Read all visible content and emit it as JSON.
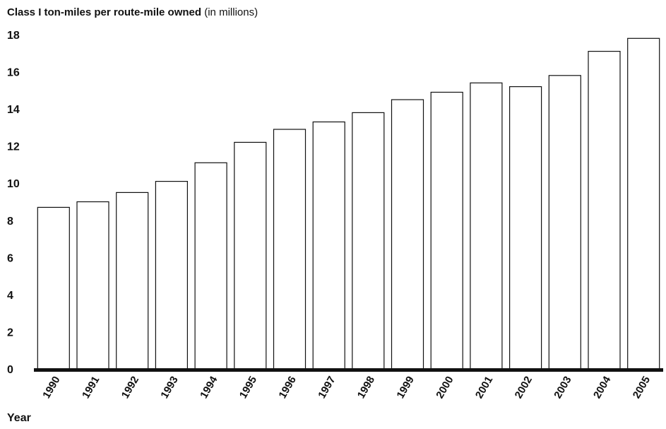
{
  "chart_data": {
    "type": "bar",
    "title": "Class I ton-miles per route-mile owned",
    "title_unit": "(in millions)",
    "xlabel": "Year",
    "ylabel": "",
    "categories": [
      "1990",
      "1991",
      "1992",
      "1993",
      "1994",
      "1995",
      "1996",
      "1997",
      "1998",
      "1999",
      "2000",
      "2001",
      "2002",
      "2003",
      "2004",
      "2005"
    ],
    "values": [
      8.7,
      9.0,
      9.5,
      10.1,
      11.1,
      12.2,
      12.9,
      13.3,
      13.8,
      14.5,
      14.9,
      15.4,
      15.2,
      15.8,
      17.1,
      17.8
    ],
    "ylim": [
      0,
      18
    ],
    "yticks": [
      0,
      2,
      4,
      6,
      8,
      10,
      12,
      14,
      16,
      18
    ],
    "grid": false,
    "legend": "none",
    "colors": {
      "bar_fill": "#ffffff",
      "bar_stroke": "#111111",
      "baseline": "#111111"
    }
  }
}
